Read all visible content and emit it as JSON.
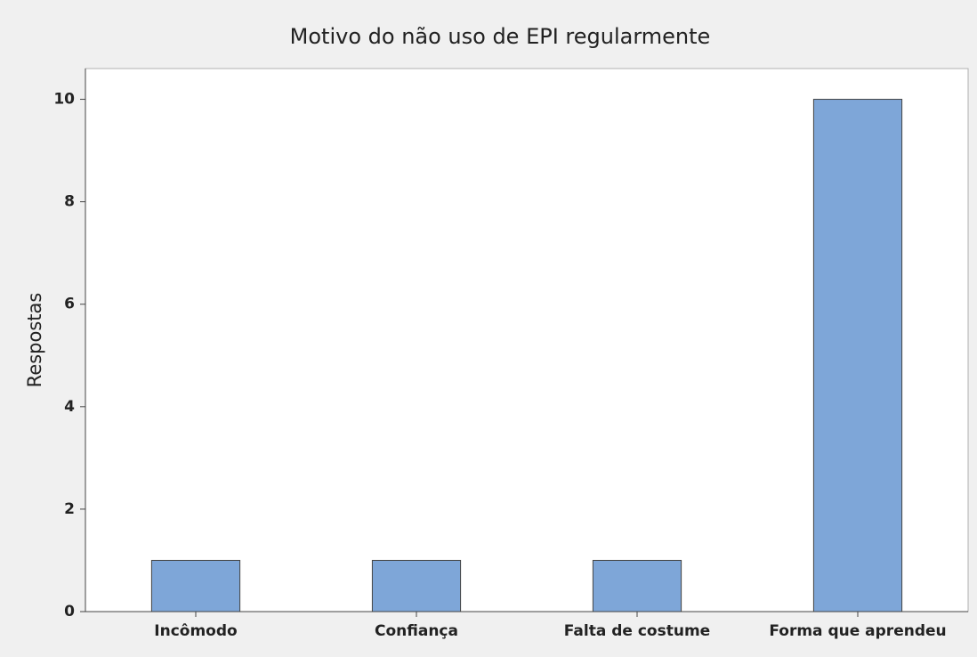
{
  "chart_data": {
    "type": "bar",
    "title": "Motivo do não uso de EPI regularmente",
    "y_label": "Respostas",
    "categories": [
      "Incômodo",
      "Confiança",
      "Falta de costume",
      "Forma que aprendeu"
    ],
    "values": [
      1,
      1,
      1,
      10
    ],
    "color": "#7ea6d8",
    "ylim": [
      0,
      10.6
    ],
    "yticks": [
      0,
      2,
      4,
      6,
      8,
      10
    ],
    "grid": false
  }
}
